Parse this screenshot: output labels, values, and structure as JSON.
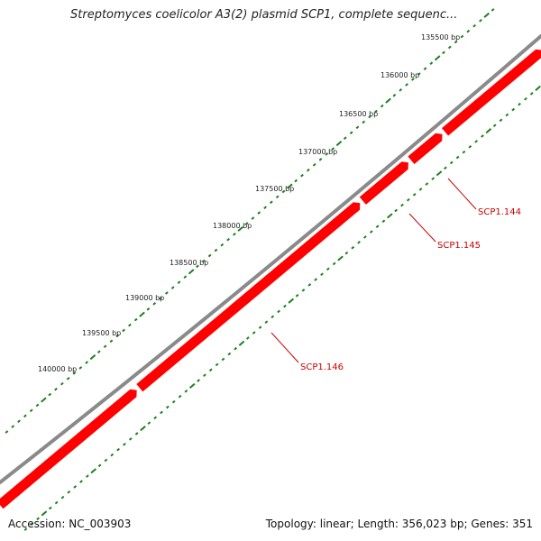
{
  "title": "Streptomyces coelicolor A3(2) plasmid SCP1, complete sequenc...",
  "accession_label": "Accession: NC_003903",
  "topology_label": "Topology: linear; Length: 356,023 bp; Genes: 351",
  "ticks": [
    {
      "label": "135500 bp"
    },
    {
      "label": "136000 bp"
    },
    {
      "label": "136500 bp"
    },
    {
      "label": "137000 bp"
    },
    {
      "label": "137500 bp"
    },
    {
      "label": "138000 bp"
    },
    {
      "label": "138500 bp"
    },
    {
      "label": "139000 bp"
    },
    {
      "label": "139500 bp"
    },
    {
      "label": "140000 bp"
    }
  ],
  "genes": [
    {
      "label": "SCP1.144"
    },
    {
      "label": "SCP1.145"
    },
    {
      "label": "SCP1.146"
    }
  ],
  "colors": {
    "backbone": "#8a8a8a",
    "gene": "#ff0000",
    "gene_label": "#cc0000",
    "tick": "#1f7f1f"
  }
}
